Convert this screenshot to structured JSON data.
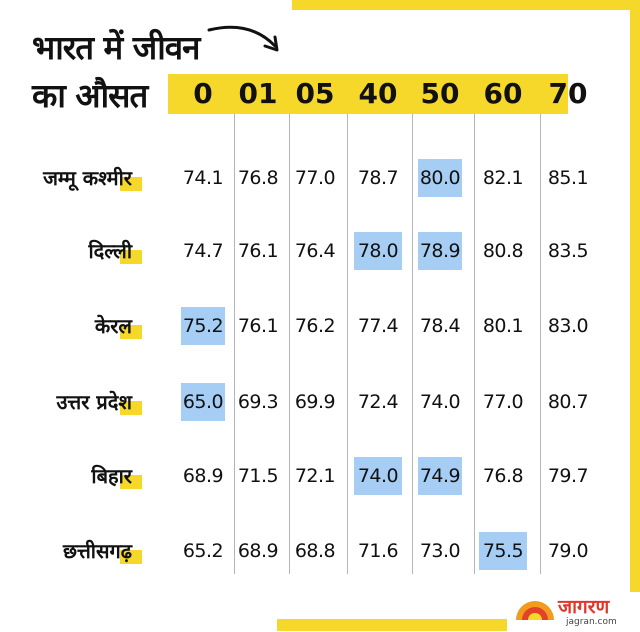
{
  "title_line1": "भारत में जीवन",
  "title_line2": "का औसत",
  "colors": {
    "accent": "#F5D829",
    "highlight": "#A6CEF5"
  },
  "chart_data": {
    "type": "table",
    "columns": [
      "0",
      "01",
      "05",
      "40",
      "50",
      "60",
      "70"
    ],
    "rows": [
      {
        "label": "जम्मू कश्मीर",
        "values": [
          "74.1",
          "76.8",
          "77.0",
          "78.7",
          "80.0",
          "82.1",
          "85.1"
        ],
        "highlight": [
          4
        ]
      },
      {
        "label": "दिल्ली",
        "values": [
          "74.7",
          "76.1",
          "76.4",
          "78.0",
          "78.9",
          "80.8",
          "83.5"
        ],
        "highlight": [
          3,
          4
        ]
      },
      {
        "label": "केरल",
        "values": [
          "75.2",
          "76.1",
          "76.2",
          "77.4",
          "78.4",
          "80.1",
          "83.0"
        ],
        "highlight": [
          0
        ]
      },
      {
        "label": "उत्तर प्रदेश",
        "values": [
          "65.0",
          "69.3",
          "69.9",
          "72.4",
          "74.0",
          "77.0",
          "80.7"
        ],
        "highlight": [
          0
        ]
      },
      {
        "label": "बिहार",
        "values": [
          "68.9",
          "71.5",
          "72.1",
          "74.0",
          "74.9",
          "76.8",
          "79.7"
        ],
        "highlight": [
          3,
          4
        ]
      },
      {
        "label": "छत्तीसगढ़",
        "values": [
          "65.2",
          "68.9",
          "68.8",
          "71.6",
          "73.0",
          "75.5",
          "79.0"
        ],
        "highlight": [
          5
        ]
      }
    ]
  },
  "logo": {
    "name": "जागरण",
    "sub": "jagran.com"
  }
}
